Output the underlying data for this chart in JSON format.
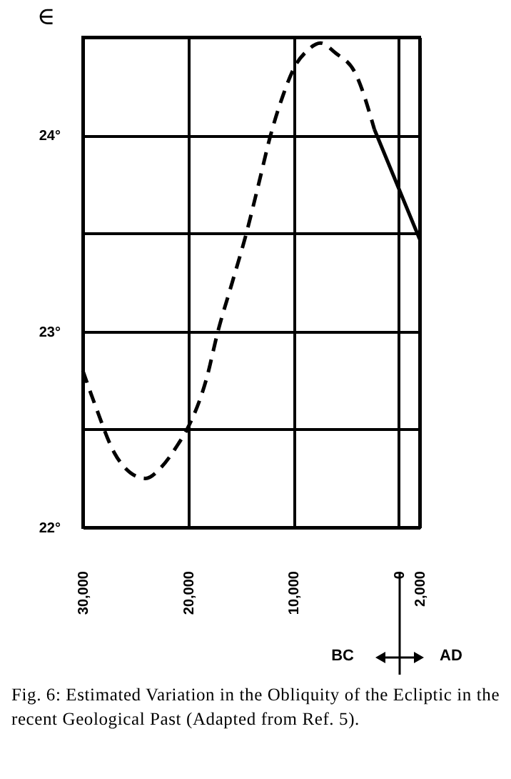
{
  "chart_data": {
    "type": "line",
    "title": "Fig. 6: Estimated Variation in the Obliquity of the Ecliptic in the recent Geological Past (Adapted from Ref. 5).",
    "ylabel": "∈",
    "annotations": [
      "BC",
      "AD"
    ],
    "xlim": [
      -30000,
      2000
    ],
    "xticks": [
      {
        "value": -30000,
        "label": "30,000"
      },
      {
        "value": -20000,
        "label": "20,000"
      },
      {
        "value": -10000,
        "label": "10,000"
      },
      0,
      {
        "value": 2000,
        "label": "2,000"
      }
    ],
    "ylim": [
      22,
      24.5
    ],
    "yticks": [
      {
        "value": 22,
        "label": "22°"
      },
      {
        "value": 22.5,
        "label": null
      },
      {
        "value": 23,
        "label": "23°"
      },
      {
        "value": 23.5,
        "label": null
      },
      {
        "value": 24,
        "label": "24°"
      },
      {
        "value": 24.5,
        "label": null
      }
    ],
    "grid": true,
    "series": [
      {
        "color": "#000000",
        "line_style": "dashed",
        "x": [
          -30000,
          -28800,
          -27000,
          -25500,
          -24050,
          -22500,
          -21000,
          -20100,
          -18240,
          -17160,
          -15800,
          -14460,
          -13300,
          -12160,
          -11000,
          -9860,
          -8700,
          -7430,
          -6000,
          -4050,
          -2300
        ],
        "values": [
          22.8,
          22.62,
          22.38,
          22.28,
          22.25,
          22.31,
          22.42,
          22.5,
          22.76,
          23.0,
          23.25,
          23.5,
          23.75,
          24.0,
          24.2,
          24.35,
          24.43,
          24.47,
          24.42,
          24.31,
          24.03
        ]
      },
      {
        "color": "#000000",
        "line_style": "solid",
        "x": [
          -2300,
          2000
        ],
        "values": [
          24.03,
          23.47
        ]
      }
    ]
  }
}
